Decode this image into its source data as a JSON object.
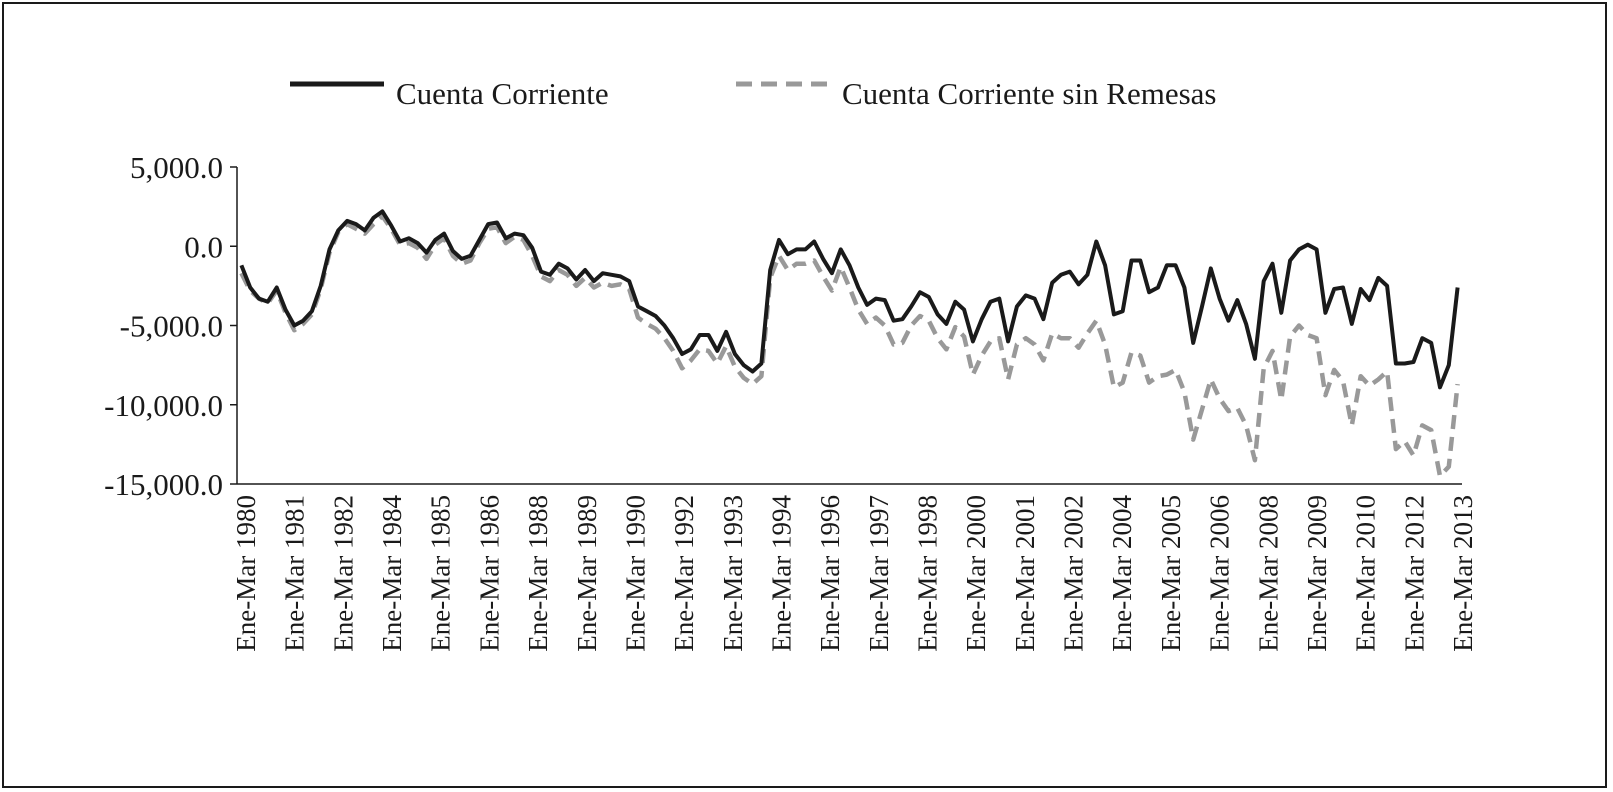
{
  "chart_data": {
    "type": "line",
    "title": "",
    "xlabel": "",
    "ylabel": "",
    "ylim": [
      -15000,
      5000
    ],
    "yticks": [
      5000,
      0,
      -5000,
      -10000,
      -15000
    ],
    "ytick_labels": [
      "5,000.0",
      "0.0",
      "-5,000.0",
      "-10,000.0",
      "-15,000.0"
    ],
    "grid": false,
    "legend_position": "top",
    "xtick_labels": [
      "Ene-Mar 1980",
      "Ene-Mar 1981",
      "Ene-Mar 1982",
      "Ene-Mar 1984",
      "Ene-Mar 1985",
      "Ene-Mar 1986",
      "Ene-Mar 1988",
      "Ene-Mar 1989",
      "Ene-Mar 1990",
      "Ene-Mar 1992",
      "Ene-Mar 1993",
      "Ene-Mar 1994",
      "Ene-Mar 1996",
      "Ene-Mar 1997",
      "Ene-Mar 1998",
      "Ene-Mar 2000",
      "Ene-Mar 2001",
      "Ene-Mar 2002",
      "Ene-Mar 2004",
      "Ene-Mar 2005",
      "Ene-Mar 2006",
      "Ene-Mar 2008",
      "Ene-Mar 2009",
      "Ene-Mar 2010",
      "Ene-Mar 2012",
      "Ene-Mar 2013"
    ],
    "series": [
      {
        "name": "Cuenta Corriente",
        "color": "#1a1a1a",
        "style": "solid",
        "values": [
          -1200,
          -2600,
          -3300,
          -3500,
          -2600,
          -4000,
          -5000,
          -4700,
          -4100,
          -2500,
          -200,
          1000,
          1600,
          1400,
          1000,
          1800,
          2200,
          1300,
          300,
          500,
          200,
          -400,
          400,
          800,
          -300,
          -800,
          -600,
          400,
          1400,
          1500,
          500,
          800,
          700,
          -100,
          -1600,
          -1800,
          -1100,
          -1400,
          -2100,
          -1500,
          -2200,
          -1700,
          -1800,
          -1900,
          -2200,
          -3800,
          -4100,
          -4400,
          -5000,
          -5800,
          -6800,
          -6500,
          -5600,
          -5600,
          -6600,
          -5400,
          -6800,
          -7500,
          -7900,
          -7400,
          -1500,
          400,
          -500,
          -200,
          -200,
          300,
          -800,
          -1700,
          -200,
          -1200,
          -2600,
          -3700,
          -3300,
          -3400,
          -4700,
          -4600,
          -3800,
          -2900,
          -3200,
          -4300,
          -4900,
          -3500,
          -4000,
          -6000,
          -4600,
          -3500,
          -3300,
          -6000,
          -3800,
          -3100,
          -3300,
          -4600,
          -2300,
          -1800,
          -1600,
          -2400,
          -1800,
          300,
          -1200,
          -4300,
          -4100,
          -900,
          -900,
          -2900,
          -2600,
          -1200,
          -1200,
          -2600,
          -6100,
          -3800,
          -1400,
          -3300,
          -4700,
          -3400,
          -4900,
          -7100,
          -2200,
          -1100,
          -4200,
          -900,
          -200,
          100,
          -200,
          -4200,
          -2700,
          -2600,
          -4900,
          -2700,
          -3400,
          -2000,
          -2500,
          -7400,
          -7400,
          -7300,
          -5800,
          -6100,
          -8900,
          -7500,
          -2600
        ]
      },
      {
        "name": "Cuenta Corriente sin Remesas",
        "color": "#999999",
        "style": "dashed",
        "values": [
          -1700,
          -2800,
          -3300,
          -3600,
          -2800,
          -4200,
          -5300,
          -4900,
          -4300,
          -2700,
          -400,
          900,
          1400,
          1100,
          800,
          1400,
          1900,
          1100,
          100,
          200,
          -100,
          -800,
          100,
          500,
          -600,
          -1100,
          -900,
          200,
          1100,
          1200,
          200,
          600,
          400,
          -600,
          -1900,
          -2200,
          -1500,
          -1800,
          -2500,
          -2000,
          -2600,
          -2300,
          -2500,
          -2400,
          -2700,
          -4500,
          -4900,
          -5200,
          -5800,
          -6600,
          -7700,
          -7200,
          -6500,
          -6600,
          -7400,
          -6300,
          -7600,
          -8300,
          -8700,
          -8200,
          -2000,
          -600,
          -1500,
          -1100,
          -1100,
          -900,
          -1900,
          -2800,
          -1300,
          -2600,
          -4000,
          -4900,
          -4500,
          -5000,
          -6200,
          -6100,
          -5000,
          -4400,
          -4700,
          -5800,
          -6500,
          -5100,
          -5700,
          -8100,
          -6900,
          -6000,
          -5800,
          -8400,
          -6200,
          -5800,
          -6200,
          -7200,
          -5500,
          -5800,
          -5800,
          -6400,
          -5500,
          -4700,
          -6200,
          -8900,
          -8600,
          -6700,
          -6900,
          -8600,
          -8200,
          -8100,
          -7800,
          -9200,
          -12200,
          -10300,
          -8400,
          -9600,
          -10400,
          -10200,
          -11300,
          -13500,
          -7700,
          -6600,
          -9700,
          -5700,
          -5000,
          -5600,
          -5800,
          -9400,
          -7800,
          -8500,
          -11300,
          -8200,
          -8800,
          -8400,
          -7900,
          -12800,
          -12300,
          -13200,
          -11300,
          -11600,
          -14500,
          -13900,
          -8700
        ]
      }
    ]
  }
}
